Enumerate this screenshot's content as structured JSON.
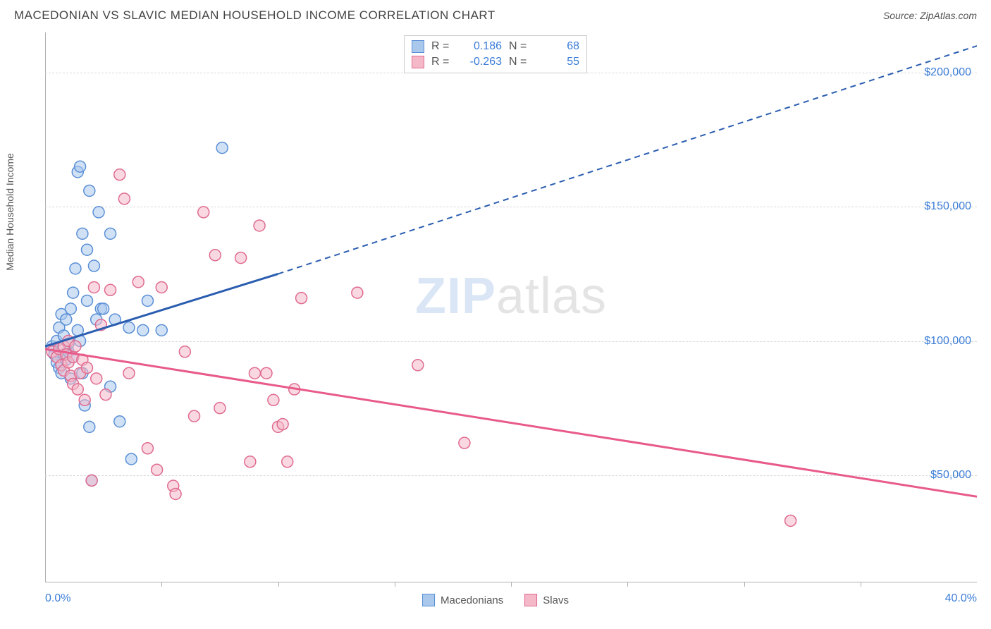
{
  "header": {
    "title": "MACEDONIAN VS SLAVIC MEDIAN HOUSEHOLD INCOME CORRELATION CHART",
    "source": "Source: ZipAtlas.com"
  },
  "chart": {
    "type": "scatter",
    "ylabel": "Median Household Income",
    "xmin_label": "0.0%",
    "xmax_label": "40.0%",
    "xlim": [
      0,
      40
    ],
    "ylim": [
      10000,
      215000
    ],
    "yticks": [
      50000,
      100000,
      150000,
      200000
    ],
    "ytick_labels": [
      "$50,000",
      "$100,000",
      "$150,000",
      "$200,000"
    ],
    "xtick_positions": [
      5,
      10,
      15,
      20,
      25,
      30,
      35
    ],
    "background_color": "#ffffff",
    "grid_color": "#d8d8d8",
    "axis_color": "#b0b0b0",
    "marker_radius": 8,
    "marker_stroke_width": 1.5,
    "series": [
      {
        "name": "Macedonians",
        "fill_color": "#a9c8ec",
        "fill_opacity": 0.55,
        "stroke_color": "#5a8fd6",
        "r_value": "0.186",
        "n_value": "68",
        "trend_solid": {
          "x1": 0,
          "y1": 98000,
          "x2": 10,
          "y2": 125000
        },
        "trend_dash": {
          "x1": 10,
          "y1": 125000,
          "x2": 40,
          "y2": 210000
        },
        "trend_color": "#2a5db0",
        "points": [
          [
            0.3,
            98000
          ],
          [
            0.4,
            95000
          ],
          [
            0.5,
            100000
          ],
          [
            0.5,
            92000
          ],
          [
            0.6,
            105000
          ],
          [
            0.6,
            90000
          ],
          [
            0.7,
            88000
          ],
          [
            0.7,
            110000
          ],
          [
            0.8,
            95000
          ],
          [
            0.8,
            102000
          ],
          [
            0.9,
            93000
          ],
          [
            0.9,
            108000
          ],
          [
            1.0,
            96000
          ],
          [
            1.0,
            99000
          ],
          [
            1.1,
            112000
          ],
          [
            1.1,
            86000
          ],
          [
            1.2,
            118000
          ],
          [
            1.2,
            94000
          ],
          [
            1.3,
            127000
          ],
          [
            1.4,
            104000
          ],
          [
            1.4,
            163000
          ],
          [
            1.5,
            100000
          ],
          [
            1.5,
            165000
          ],
          [
            1.6,
            140000
          ],
          [
            1.6,
            88000
          ],
          [
            1.7,
            76000
          ],
          [
            1.8,
            134000
          ],
          [
            1.8,
            115000
          ],
          [
            1.9,
            156000
          ],
          [
            1.9,
            68000
          ],
          [
            2.0,
            48000
          ],
          [
            2.1,
            128000
          ],
          [
            2.2,
            108000
          ],
          [
            2.3,
            148000
          ],
          [
            2.4,
            112000
          ],
          [
            2.5,
            112000
          ],
          [
            2.8,
            83000
          ],
          [
            2.8,
            140000
          ],
          [
            3.0,
            108000
          ],
          [
            3.2,
            70000
          ],
          [
            3.6,
            105000
          ],
          [
            3.7,
            56000
          ],
          [
            4.2,
            104000
          ],
          [
            4.4,
            115000
          ],
          [
            5.0,
            104000
          ],
          [
            7.6,
            172000
          ]
        ]
      },
      {
        "name": "Slavs",
        "fill_color": "#f4b8c9",
        "fill_opacity": 0.55,
        "stroke_color": "#e06b8f",
        "r_value": "-0.263",
        "n_value": "55",
        "trend_solid": {
          "x1": 0,
          "y1": 97000,
          "x2": 40,
          "y2": 42000
        },
        "trend_dash": null,
        "trend_color": "#e85a8a",
        "points": [
          [
            0.3,
            96000
          ],
          [
            0.5,
            94000
          ],
          [
            0.6,
            97000
          ],
          [
            0.7,
            91000
          ],
          [
            0.8,
            98000
          ],
          [
            0.8,
            89000
          ],
          [
            0.9,
            95000
          ],
          [
            1.0,
            92000
          ],
          [
            1.0,
            100000
          ],
          [
            1.1,
            87000
          ],
          [
            1.2,
            94000
          ],
          [
            1.2,
            84000
          ],
          [
            1.3,
            98000
          ],
          [
            1.4,
            82000
          ],
          [
            1.5,
            88000
          ],
          [
            1.6,
            93000
          ],
          [
            1.7,
            78000
          ],
          [
            1.8,
            90000
          ],
          [
            2.0,
            48000
          ],
          [
            2.1,
            120000
          ],
          [
            2.2,
            86000
          ],
          [
            2.4,
            106000
          ],
          [
            2.6,
            80000
          ],
          [
            2.8,
            119000
          ],
          [
            3.2,
            162000
          ],
          [
            3.4,
            153000
          ],
          [
            3.6,
            88000
          ],
          [
            4.0,
            122000
          ],
          [
            4.4,
            60000
          ],
          [
            4.8,
            52000
          ],
          [
            5.0,
            120000
          ],
          [
            5.5,
            46000
          ],
          [
            5.6,
            43000
          ],
          [
            6.0,
            96000
          ],
          [
            6.4,
            72000
          ],
          [
            6.8,
            148000
          ],
          [
            7.3,
            132000
          ],
          [
            7.5,
            75000
          ],
          [
            8.4,
            131000
          ],
          [
            8.8,
            55000
          ],
          [
            9.0,
            88000
          ],
          [
            9.2,
            143000
          ],
          [
            9.5,
            88000
          ],
          [
            9.8,
            78000
          ],
          [
            10.0,
            68000
          ],
          [
            10.2,
            69000
          ],
          [
            10.4,
            55000
          ],
          [
            10.7,
            82000
          ],
          [
            11.0,
            116000
          ],
          [
            13.4,
            118000
          ],
          [
            16.0,
            91000
          ],
          [
            18.0,
            62000
          ],
          [
            32.0,
            33000
          ]
        ]
      }
    ],
    "bottom_legend": [
      {
        "label": "Macedonians",
        "fill": "#a9c8ec",
        "stroke": "#5a8fd6"
      },
      {
        "label": "Slavs",
        "fill": "#f4b8c9",
        "stroke": "#e06b8f"
      }
    ],
    "watermark": {
      "part1": "ZIP",
      "part2": "atlas"
    }
  }
}
